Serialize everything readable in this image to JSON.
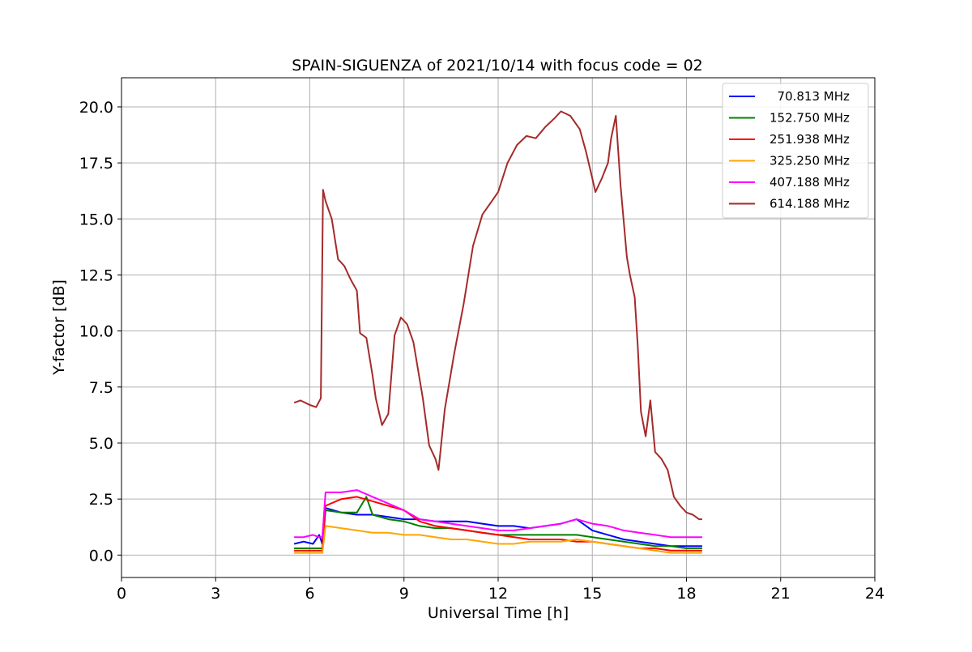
{
  "chart_data": {
    "type": "line",
    "title": "SPAIN-SIGUENZA of 2021/10/14 with focus code = 02",
    "xlabel": "Universal Time [h]",
    "ylabel": "Y-factor [dB]",
    "xlim": [
      0,
      24
    ],
    "ylim": [
      -1.0,
      21.3
    ],
    "xticks": [
      0,
      3,
      6,
      9,
      12,
      15,
      18,
      21,
      24
    ],
    "xtick_labels": [
      "0",
      "3",
      "6",
      "9",
      "12",
      "15",
      "18",
      "21",
      "24"
    ],
    "yticks": [
      0.0,
      2.5,
      5.0,
      7.5,
      10.0,
      12.5,
      15.0,
      17.5,
      20.0
    ],
    "ytick_labels": [
      "0.0",
      "2.5",
      "5.0",
      "7.5",
      "10.0",
      "12.5",
      "15.0",
      "17.5",
      "20.0"
    ],
    "grid": true,
    "legend_position": "top-right",
    "series": [
      {
        "name": "  70.813 MHz",
        "color": "#0000ff",
        "x": [
          5.5,
          5.8,
          6.1,
          6.3,
          6.4,
          6.5,
          7.0,
          7.5,
          8.0,
          8.5,
          9.0,
          9.5,
          10.0,
          10.5,
          11.0,
          11.5,
          12.0,
          12.5,
          13.0,
          13.5,
          14.0,
          14.5,
          15.0,
          15.5,
          16.0,
          16.5,
          17.0,
          17.5,
          18.0,
          18.5
        ],
        "y": [
          0.5,
          0.6,
          0.5,
          0.9,
          0.5,
          2.1,
          1.9,
          1.8,
          1.8,
          1.7,
          1.6,
          1.6,
          1.5,
          1.5,
          1.5,
          1.4,
          1.3,
          1.3,
          1.2,
          1.3,
          1.4,
          1.6,
          1.1,
          0.9,
          0.7,
          0.6,
          0.5,
          0.4,
          0.4,
          0.4
        ]
      },
      {
        "name": "152.750 MHz",
        "color": "#008000",
        "x": [
          5.5,
          5.8,
          6.1,
          6.3,
          6.4,
          6.5,
          7.0,
          7.5,
          7.8,
          8.0,
          8.5,
          9.0,
          9.5,
          10.0,
          10.5,
          11.0,
          11.5,
          12.0,
          12.5,
          13.0,
          13.5,
          14.0,
          14.5,
          15.0,
          15.5,
          16.0,
          16.5,
          17.0,
          17.5,
          18.0,
          18.5
        ],
        "y": [
          0.3,
          0.3,
          0.3,
          0.3,
          0.3,
          2.0,
          1.9,
          1.9,
          2.6,
          1.8,
          1.6,
          1.5,
          1.3,
          1.2,
          1.2,
          1.1,
          1.0,
          0.9,
          0.9,
          0.9,
          0.9,
          0.9,
          0.9,
          0.8,
          0.7,
          0.6,
          0.5,
          0.4,
          0.4,
          0.3,
          0.3
        ]
      },
      {
        "name": "251.938 MHz",
        "color": "#ff0000",
        "x": [
          5.5,
          5.8,
          6.1,
          6.3,
          6.4,
          6.5,
          7.0,
          7.5,
          8.0,
          8.5,
          9.0,
          9.5,
          10.0,
          10.5,
          11.0,
          11.5,
          12.0,
          12.5,
          13.0,
          13.5,
          14.0,
          14.5,
          15.0,
          15.5,
          16.0,
          16.5,
          17.0,
          17.5,
          18.0,
          18.5
        ],
        "y": [
          0.2,
          0.2,
          0.2,
          0.2,
          0.2,
          2.2,
          2.5,
          2.6,
          2.4,
          2.2,
          2.0,
          1.5,
          1.3,
          1.2,
          1.1,
          1.0,
          0.9,
          0.8,
          0.7,
          0.7,
          0.7,
          0.6,
          0.6,
          0.5,
          0.4,
          0.3,
          0.3,
          0.2,
          0.2,
          0.2
        ]
      },
      {
        "name": "325.250 MHz",
        "color": "#ffa500",
        "x": [
          5.5,
          5.8,
          6.1,
          6.3,
          6.4,
          6.5,
          7.0,
          7.5,
          8.0,
          8.5,
          9.0,
          9.5,
          10.0,
          10.5,
          11.0,
          11.5,
          12.0,
          12.5,
          13.0,
          13.5,
          14.0,
          14.5,
          15.0,
          15.5,
          16.0,
          16.5,
          17.0,
          17.5,
          18.0,
          18.5
        ],
        "y": [
          0.1,
          0.1,
          0.1,
          0.1,
          0.1,
          1.3,
          1.2,
          1.1,
          1.0,
          1.0,
          0.9,
          0.9,
          0.8,
          0.7,
          0.7,
          0.6,
          0.5,
          0.5,
          0.6,
          0.6,
          0.6,
          0.7,
          0.6,
          0.5,
          0.4,
          0.3,
          0.2,
          0.1,
          0.1,
          0.1
        ]
      },
      {
        "name": "407.188 MHz",
        "color": "#ff00ff",
        "x": [
          5.5,
          5.8,
          6.1,
          6.3,
          6.4,
          6.5,
          7.0,
          7.5,
          8.0,
          8.5,
          9.0,
          9.5,
          10.0,
          10.5,
          11.0,
          11.5,
          12.0,
          12.5,
          13.0,
          13.5,
          14.0,
          14.5,
          15.0,
          15.5,
          16.0,
          16.5,
          17.0,
          17.5,
          18.0,
          18.5
        ],
        "y": [
          0.8,
          0.8,
          0.9,
          0.8,
          0.8,
          2.8,
          2.8,
          2.9,
          2.6,
          2.3,
          2.0,
          1.6,
          1.5,
          1.4,
          1.3,
          1.2,
          1.1,
          1.1,
          1.2,
          1.3,
          1.4,
          1.6,
          1.4,
          1.3,
          1.1,
          1.0,
          0.9,
          0.8,
          0.8,
          0.8
        ]
      },
      {
        "name": "614.188 MHz",
        "color": "#a52a2a",
        "x": [
          5.5,
          5.7,
          6.0,
          6.2,
          6.35,
          6.42,
          6.5,
          6.7,
          6.9,
          7.1,
          7.3,
          7.5,
          7.6,
          7.8,
          8.0,
          8.1,
          8.3,
          8.5,
          8.7,
          8.9,
          9.1,
          9.3,
          9.6,
          9.8,
          10.0,
          10.1,
          10.3,
          10.6,
          10.9,
          11.2,
          11.5,
          11.8,
          12.0,
          12.3,
          12.6,
          12.9,
          13.2,
          13.5,
          13.8,
          14.0,
          14.3,
          14.6,
          14.8,
          15.0,
          15.1,
          15.3,
          15.5,
          15.6,
          15.75,
          15.9,
          16.1,
          16.2,
          16.35,
          16.45,
          16.55,
          16.7,
          16.85,
          17.0,
          17.2,
          17.4,
          17.6,
          17.8,
          18.0,
          18.2,
          18.4,
          18.5
        ],
        "y": [
          6.8,
          6.9,
          6.7,
          6.6,
          7.0,
          16.3,
          15.8,
          15.0,
          13.2,
          12.9,
          12.3,
          11.8,
          9.9,
          9.7,
          8.0,
          7.0,
          5.8,
          6.3,
          9.8,
          10.6,
          10.3,
          9.5,
          7.0,
          4.9,
          4.3,
          3.8,
          6.5,
          9.0,
          11.2,
          13.8,
          15.2,
          15.8,
          16.2,
          17.5,
          18.3,
          18.7,
          18.6,
          19.1,
          19.5,
          19.8,
          19.6,
          19.0,
          18.0,
          16.8,
          16.2,
          16.8,
          17.5,
          18.6,
          19.6,
          16.5,
          13.3,
          12.5,
          11.5,
          9.3,
          6.4,
          5.3,
          6.9,
          4.6,
          4.3,
          3.8,
          2.6,
          2.2,
          1.9,
          1.8,
          1.6,
          1.6
        ]
      }
    ]
  }
}
